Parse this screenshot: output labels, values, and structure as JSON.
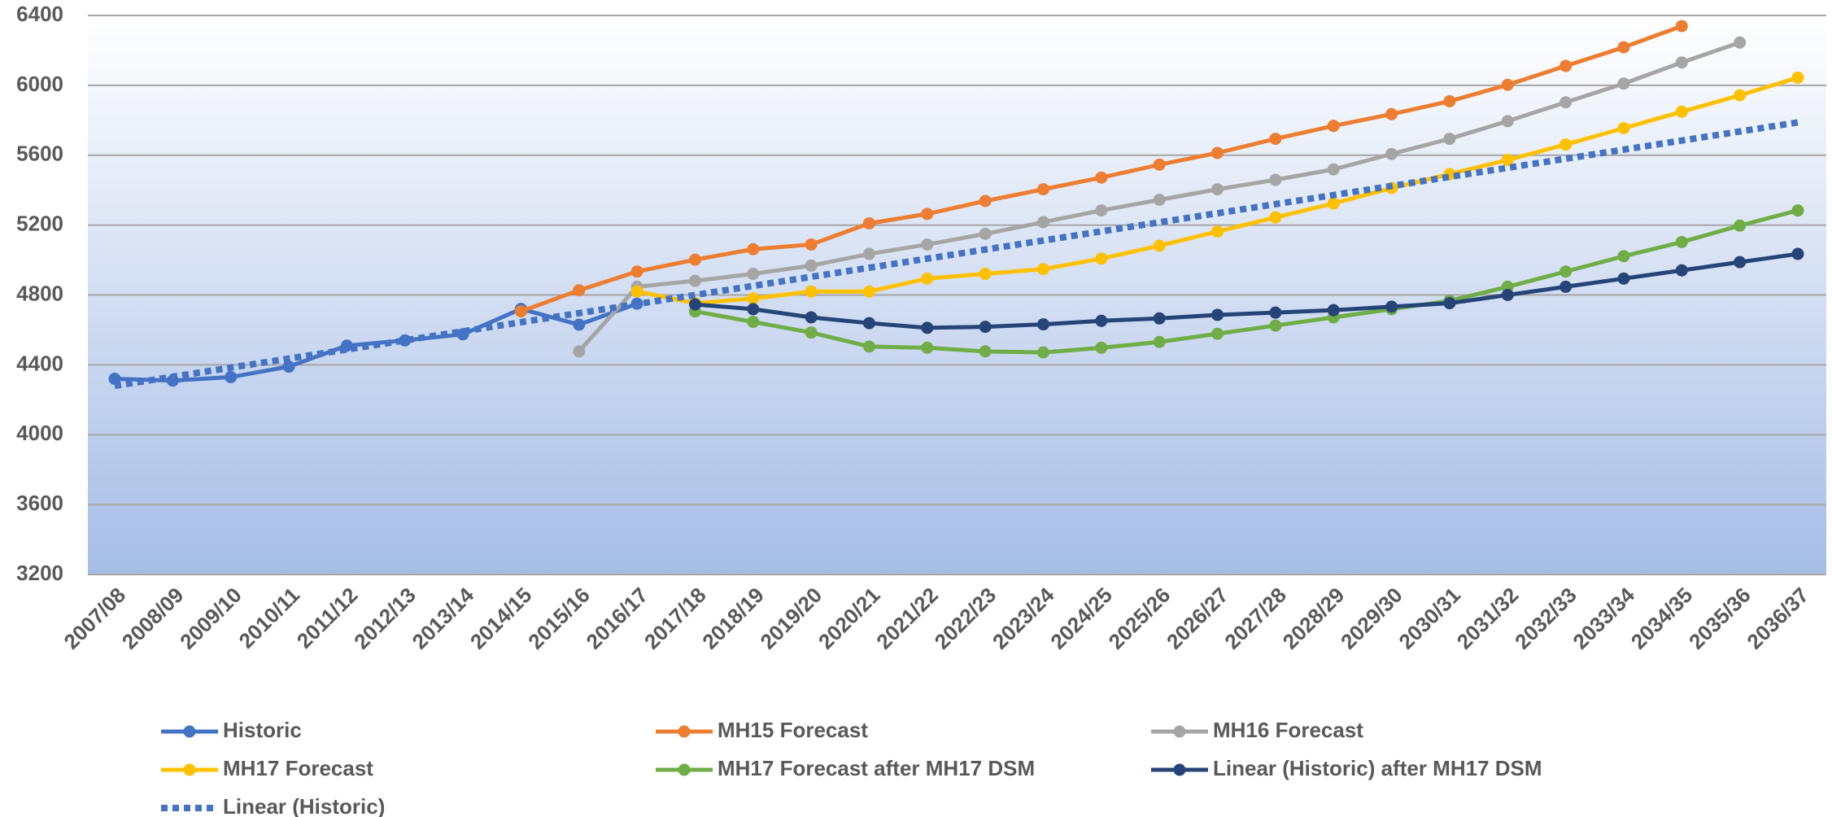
{
  "chart_data": {
    "type": "line",
    "categories": [
      "2007/08",
      "2008/09",
      "2009/10",
      "2010/11",
      "2011/12",
      "2012/13",
      "2013/14",
      "2014/15",
      "2015/16",
      "2016/17",
      "2017/18",
      "2018/19",
      "2019/20",
      "2020/21",
      "2021/22",
      "2022/23",
      "2023/24",
      "2024/25",
      "2025/26",
      "2026/27",
      "2027/28",
      "2028/29",
      "2029/30",
      "2030/31",
      "2031/32",
      "2032/33",
      "2033/34",
      "2034/35",
      "2035/36",
      "2036/37"
    ],
    "ylim": [
      3200,
      6400
    ],
    "yticks": [
      3200,
      3600,
      4000,
      4400,
      4800,
      5200,
      5600,
      6000,
      6400
    ],
    "grid": true,
    "series": [
      {
        "name": "Historic",
        "color": "#4472c4",
        "markers": true,
        "line_style": "solid",
        "values": [
          4320,
          4310,
          4330,
          4390,
          4510,
          4540,
          4575,
          4720,
          4630,
          4750,
          null,
          null,
          null,
          null,
          null,
          null,
          null,
          null,
          null,
          null,
          null,
          null,
          null,
          null,
          null,
          null,
          null,
          null,
          null,
          null
        ]
      },
      {
        "name": "MH15 Forecast",
        "color": "#ed7d31",
        "markers": true,
        "line_style": "solid",
        "values": [
          null,
          null,
          null,
          null,
          null,
          null,
          null,
          4706,
          4827,
          4934,
          5002,
          5062,
          5089,
          5210,
          5264,
          5338,
          5405,
          5472,
          5546,
          5613,
          5694,
          5768,
          5835,
          5909,
          6003,
          6111,
          6218,
          6339,
          null,
          null
        ]
      },
      {
        "name": "MH16 Forecast",
        "color": "#a5a5a5",
        "markers": true,
        "line_style": "solid",
        "values": [
          null,
          null,
          null,
          null,
          null,
          null,
          null,
          null,
          4477,
          4847,
          4881,
          4921,
          4968,
          5035,
          5089,
          5150,
          5217,
          5284,
          5345,
          5405,
          5459,
          5519,
          5607,
          5694,
          5795,
          5903,
          6010,
          6131,
          6245,
          null
        ]
      },
      {
        "name": "MH17 Forecast",
        "color": "#ffc000",
        "markers": true,
        "line_style": "solid",
        "values": [
          null,
          null,
          null,
          null,
          null,
          null,
          null,
          null,
          null,
          4820,
          4753,
          4780,
          4820,
          4820,
          4894,
          4921,
          4948,
          5008,
          5082,
          5163,
          5244,
          5324,
          5412,
          5492,
          5573,
          5661,
          5755,
          5849,
          5943,
          6044
        ]
      },
      {
        "name": "MH17 Forecast after MH17 DSM",
        "color": "#70ad47",
        "markers": true,
        "line_style": "solid",
        "values": [
          null,
          null,
          null,
          null,
          null,
          null,
          null,
          null,
          null,
          null,
          4706,
          4646,
          4585,
          4505,
          4498,
          4477,
          4471,
          4498,
          4531,
          4578,
          4625,
          4672,
          4719,
          4767,
          4847,
          4934,
          5022,
          5103,
          5197,
          5284
        ]
      },
      {
        "name": "Linear (Historic) after MH17 DSM",
        "color": "#264478",
        "markers": true,
        "line_style": "solid",
        "values": [
          null,
          null,
          null,
          null,
          null,
          null,
          null,
          null,
          null,
          null,
          4746,
          4719,
          4672,
          4639,
          4612,
          4618,
          4632,
          4652,
          4666,
          4686,
          4699,
          4713,
          4733,
          4753,
          4800,
          4847,
          4894,
          4941,
          4988,
          5035
        ]
      },
      {
        "name": "Linear (Historic)",
        "color": "#4472c4",
        "markers": false,
        "line_style": "dotted",
        "values": [
          4280,
          4332,
          4384,
          4436,
          4488,
          4540,
          4592,
          4644,
          4696,
          4748,
          4800,
          4852,
          4904,
          4956,
          5008,
          5060,
          5112,
          5164,
          5216,
          5268,
          5320,
          5372,
          5424,
          5476,
          5528,
          5580,
          5632,
          5684,
          5736,
          5788
        ]
      }
    ]
  }
}
